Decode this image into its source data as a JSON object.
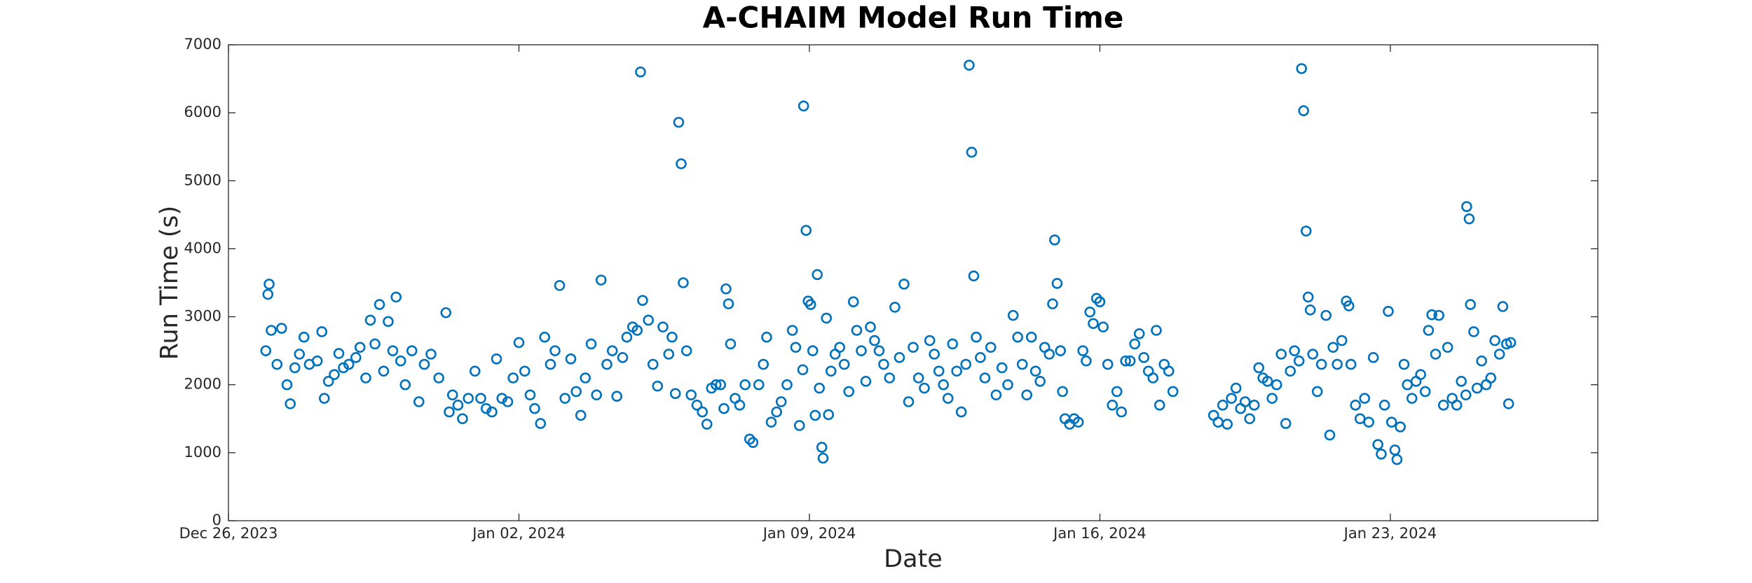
{
  "chart_data": {
    "type": "scatter",
    "title": "A-CHAIM Model Run Time",
    "x_label": "Date",
    "y_label": "Run Time (s)",
    "color": "#0072bd",
    "xlim": [
      0,
      33
    ],
    "ylim": [
      0,
      7000
    ],
    "xticks": [
      {
        "value": 0,
        "label": "Dec 26, 2023"
      },
      {
        "value": 7,
        "label": "Jan 02, 2024"
      },
      {
        "value": 14,
        "label": "Jan 09, 2024"
      },
      {
        "value": 21,
        "label": "Jan 16, 2024"
      },
      {
        "value": 28,
        "label": "Jan 23, 2024"
      }
    ],
    "yticks": [
      0,
      1000,
      2000,
      3000,
      4000,
      5000,
      6000,
      7000
    ],
    "x": [
      0.9,
      0.95,
      0.98,
      1.03,
      1.17,
      1.28,
      1.41,
      1.49,
      1.6,
      1.71,
      1.82,
      1.95,
      2.14,
      2.25,
      2.31,
      2.41,
      2.55,
      2.66,
      2.77,
      2.9,
      3.07,
      3.17,
      3.31,
      3.42,
      3.53,
      3.64,
      3.74,
      3.85,
      3.96,
      4.04,
      4.15,
      4.26,
      4.42,
      4.59,
      4.72,
      4.88,
      5.07,
      5.24,
      5.32,
      5.4,
      5.53,
      5.64,
      5.78,
      5.94,
      6.08,
      6.21,
      6.35,
      6.46,
      6.59,
      6.73,
      6.86,
      7.0,
      7.14,
      7.27,
      7.38,
      7.52,
      7.62,
      7.76,
      7.87,
      7.98,
      8.11,
      8.25,
      8.38,
      8.49,
      8.6,
      8.74,
      8.87,
      8.98,
      9.12,
      9.25,
      9.36,
      9.5,
      9.6,
      9.74,
      9.85,
      9.93,
      9.98,
      10.12,
      10.23,
      10.34,
      10.47,
      10.61,
      10.69,
      10.77,
      10.85,
      10.91,
      10.96,
      11.04,
      11.15,
      11.29,
      11.42,
      11.53,
      11.64,
      11.75,
      11.86,
      11.94,
      11.99,
      12.05,
      12.1,
      12.21,
      12.32,
      12.45,
      12.56,
      12.64,
      12.78,
      12.89,
      12.97,
      13.08,
      13.21,
      13.32,
      13.46,
      13.59,
      13.67,
      13.76,
      13.84,
      13.86,
      13.92,
      13.97,
      14.03,
      14.08,
      14.14,
      14.19,
      14.24,
      14.3,
      14.33,
      14.41,
      14.46,
      14.52,
      14.62,
      14.73,
      14.84,
      14.95,
      15.06,
      15.14,
      15.25,
      15.36,
      15.47,
      15.57,
      15.68,
      15.79,
      15.93,
      16.06,
      16.17,
      16.28,
      16.39,
      16.5,
      16.63,
      16.77,
      16.9,
      17.01,
      17.12,
      17.23,
      17.34,
      17.45,
      17.55,
      17.66,
      17.77,
      17.85,
      17.91,
      17.96,
      18.02,
      18.12,
      18.23,
      18.37,
      18.5,
      18.64,
      18.78,
      18.91,
      19.02,
      19.13,
      19.24,
      19.35,
      19.45,
      19.56,
      19.67,
      19.78,
      19.86,
      19.91,
      19.97,
      20.05,
      20.1,
      20.16,
      20.27,
      20.38,
      20.48,
      20.59,
      20.67,
      20.76,
      20.84,
      20.92,
      21.0,
      21.08,
      21.19,
      21.3,
      21.41,
      21.52,
      21.62,
      21.73,
      21.84,
      21.95,
      22.06,
      22.17,
      22.28,
      22.36,
      22.44,
      22.55,
      22.66,
      22.76,
      23.74,
      23.85,
      23.96,
      24.07,
      24.17,
      24.28,
      24.39,
      24.5,
      24.61,
      24.72,
      24.83,
      24.93,
      25.04,
      25.15,
      25.26,
      25.37,
      25.48,
      25.59,
      25.69,
      25.8,
      25.86,
      25.91,
      25.97,
      26.02,
      26.07,
      26.13,
      26.24,
      26.34,
      26.45,
      26.54,
      26.62,
      26.72,
      26.83,
      26.94,
      27.0,
      27.05,
      27.16,
      27.27,
      27.38,
      27.48,
      27.59,
      27.7,
      27.78,
      27.86,
      27.95,
      28.03,
      28.11,
      28.16,
      28.24,
      28.33,
      28.41,
      28.52,
      28.62,
      28.73,
      28.84,
      28.92,
      29.0,
      29.09,
      29.17,
      29.28,
      29.38,
      29.49,
      29.6,
      29.71,
      29.82,
      29.84,
      29.9,
      29.93,
      30.01,
      30.09,
      30.2,
      30.31,
      30.42,
      30.52,
      30.63,
      30.71,
      30.8,
      30.85,
      30.9
    ],
    "values": [
      2500,
      3330,
      3480,
      2800,
      2300,
      2830,
      2000,
      1720,
      2250,
      2450,
      2700,
      2300,
      2350,
      2780,
      1800,
      2050,
      2150,
      2460,
      2250,
      2300,
      2400,
      2550,
      2100,
      2950,
      2600,
      3180,
      2200,
      2930,
      2500,
      3290,
      2350,
      2000,
      2500,
      1750,
      2300,
      2450,
      2100,
      3060,
      1600,
      1850,
      1700,
      1500,
      1800,
      2200,
      1800,
      1650,
      1600,
      2380,
      1800,
      1750,
      2100,
      2620,
      2200,
      1850,
      1650,
      1430,
      2700,
      2300,
      2500,
      3460,
      1800,
      2380,
      1900,
      1550,
      2100,
      2600,
      1850,
      3540,
      2300,
      2500,
      1830,
      2400,
      2700,
      2850,
      2800,
      6600,
      3240,
      2950,
      2300,
      1980,
      2850,
      2450,
      2700,
      1870,
      5860,
      5250,
      3500,
      2500,
      1850,
      1700,
      1600,
      1420,
      1950,
      2000,
      2000,
      1650,
      3410,
      3190,
      2600,
      1800,
      1700,
      2000,
      1200,
      1150,
      2000,
      2300,
      2700,
      1450,
      1600,
      1750,
      2000,
      2800,
      2550,
      1400,
      2220,
      6100,
      4270,
      3230,
      3180,
      2500,
      1550,
      3620,
      1950,
      1080,
      920,
      2980,
      1560,
      2200,
      2450,
      2550,
      2300,
      1900,
      3220,
      2800,
      2500,
      2050,
      2850,
      2650,
      2500,
      2300,
      2100,
      3140,
      2400,
      3480,
      1750,
      2550,
      2100,
      1950,
      2650,
      2450,
      2200,
      2000,
      1800,
      2600,
      2200,
      1600,
      2300,
      6700,
      5420,
      3600,
      2700,
      2400,
      2100,
      2550,
      1850,
      2250,
      2000,
      3020,
      2700,
      2300,
      1850,
      2700,
      2200,
      2050,
      2550,
      2450,
      3190,
      4130,
      3490,
      2500,
      1900,
      1500,
      1420,
      1500,
      1450,
      2500,
      2350,
      3070,
      2900,
      3270,
      3220,
      2850,
      2300,
      1700,
      1900,
      1600,
      2350,
      2350,
      2600,
      2750,
      2400,
      2200,
      2100,
      2800,
      1700,
      2300,
      2200,
      1900,
      1550,
      1450,
      1700,
      1420,
      1800,
      1950,
      1650,
      1750,
      1500,
      1700,
      2250,
      2100,
      2050,
      1800,
      2000,
      2450,
      1430,
      2200,
      2500,
      2350,
      6650,
      6030,
      4260,
      3290,
      3100,
      2450,
      1900,
      2300,
      3020,
      1260,
      2550,
      2300,
      2650,
      3230,
      3160,
      2300,
      1700,
      1500,
      1800,
      1450,
      2400,
      1120,
      980,
      1700,
      3080,
      1450,
      1040,
      900,
      1380,
      2300,
      2000,
      1800,
      2050,
      2150,
      1900,
      2800,
      3030,
      2450,
      3020,
      1700,
      2550,
      1800,
      1700,
      2050,
      1850,
      4620,
      4440,
      3180,
      2780,
      1950,
      2350,
      2000,
      2100,
      2650,
      2450,
      3150,
      2600,
      1720,
      2620
    ]
  }
}
